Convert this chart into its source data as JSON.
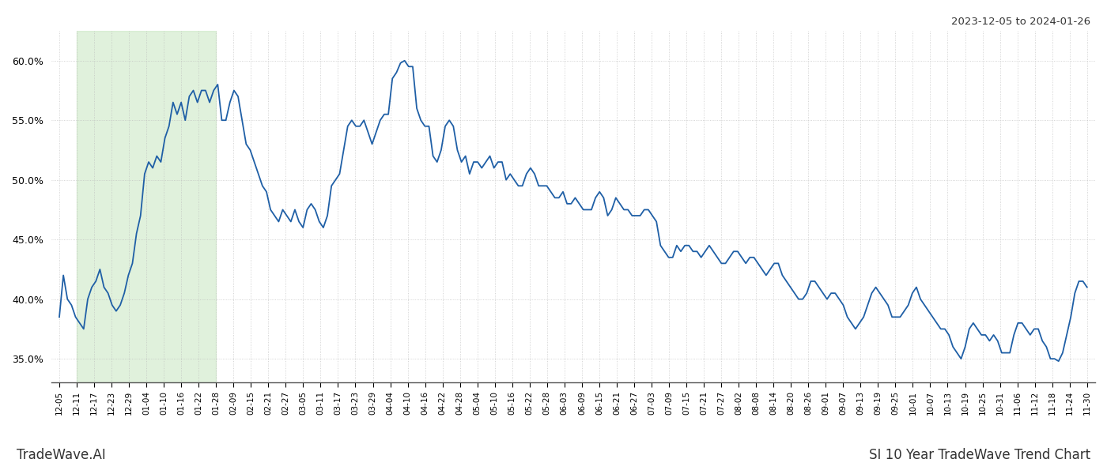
{
  "title_top_right": "2023-12-05 to 2024-01-26",
  "title_bottom_left": "TradeWave.AI",
  "title_bottom_right": "SI 10 Year TradeWave Trend Chart",
  "line_color": "#1f5fa6",
  "line_width": 1.3,
  "background_color": "#ffffff",
  "shaded_region_color": "#c8e6c0",
  "shaded_region_alpha": 0.55,
  "ylim": [
    33.0,
    62.5
  ],
  "yticks": [
    35.0,
    40.0,
    45.0,
    50.0,
    55.0,
    60.0
  ],
  "x_labels": [
    "12-05",
    "12-11",
    "12-17",
    "12-23",
    "12-29",
    "01-04",
    "01-10",
    "01-16",
    "01-22",
    "01-28",
    "02-09",
    "02-15",
    "02-21",
    "02-27",
    "03-05",
    "03-11",
    "03-17",
    "03-23",
    "03-29",
    "04-04",
    "04-10",
    "04-16",
    "04-22",
    "04-28",
    "05-04",
    "05-10",
    "05-16",
    "05-22",
    "05-28",
    "06-03",
    "06-09",
    "06-15",
    "06-21",
    "06-27",
    "07-03",
    "07-09",
    "07-15",
    "07-21",
    "07-27",
    "08-02",
    "08-08",
    "08-14",
    "08-20",
    "08-26",
    "09-01",
    "09-07",
    "09-13",
    "09-19",
    "09-25",
    "10-01",
    "10-07",
    "10-13",
    "10-19",
    "10-25",
    "10-31",
    "11-06",
    "11-12",
    "11-18",
    "11-24",
    "11-30"
  ],
  "shaded_x_start_label": "12-11",
  "shaded_x_end_label": "01-28",
  "values": [
    38.5,
    42.0,
    40.0,
    39.5,
    38.5,
    38.0,
    37.5,
    40.0,
    41.0,
    41.5,
    42.5,
    41.0,
    40.5,
    39.5,
    39.0,
    39.5,
    40.5,
    42.0,
    43.0,
    45.5,
    47.0,
    50.5,
    51.5,
    51.0,
    52.0,
    51.5,
    53.5,
    54.5,
    56.5,
    55.5,
    56.5,
    55.0,
    57.0,
    57.5,
    56.5,
    57.5,
    57.5,
    56.5,
    57.5,
    58.0,
    55.0,
    55.0,
    56.5,
    57.5,
    57.0,
    55.0,
    53.0,
    52.5,
    51.5,
    50.5,
    49.5,
    49.0,
    47.5,
    47.0,
    46.5,
    47.5,
    47.0,
    46.5,
    47.5,
    46.5,
    46.0,
    47.5,
    48.0,
    47.5,
    46.5,
    46.0,
    47.0,
    49.5,
    50.0,
    50.5,
    52.5,
    54.5,
    55.0,
    54.5,
    54.5,
    55.0,
    54.0,
    53.0,
    54.0,
    55.0,
    55.5,
    55.5,
    58.5,
    59.0,
    59.8,
    60.0,
    59.5,
    59.5,
    56.0,
    55.0,
    54.5,
    54.5,
    52.0,
    51.5,
    52.5,
    54.5,
    55.0,
    54.5,
    52.5,
    51.5,
    52.0,
    50.5,
    51.5,
    51.5,
    51.0,
    51.5,
    52.0,
    51.0,
    51.5,
    51.5,
    50.0,
    50.5,
    50.0,
    49.5,
    49.5,
    50.5,
    51.0,
    50.5,
    49.5,
    49.5,
    49.5,
    49.0,
    48.5,
    48.5,
    49.0,
    48.0,
    48.0,
    48.5,
    48.0,
    47.5,
    47.5,
    47.5,
    48.5,
    49.0,
    48.5,
    47.0,
    47.5,
    48.5,
    48.0,
    47.5,
    47.5,
    47.0,
    47.0,
    47.0,
    47.5,
    47.5,
    47.0,
    46.5,
    44.5,
    44.0,
    43.5,
    43.5,
    44.5,
    44.0,
    44.5,
    44.5,
    44.0,
    44.0,
    43.5,
    44.0,
    44.5,
    44.0,
    43.5,
    43.0,
    43.0,
    43.5,
    44.0,
    44.0,
    43.5,
    43.0,
    43.5,
    43.5,
    43.0,
    42.5,
    42.0,
    42.5,
    43.0,
    43.0,
    42.0,
    41.5,
    41.0,
    40.5,
    40.0,
    40.0,
    40.5,
    41.5,
    41.5,
    41.0,
    40.5,
    40.0,
    40.5,
    40.5,
    40.0,
    39.5,
    38.5,
    38.0,
    37.5,
    38.0,
    38.5,
    39.5,
    40.5,
    41.0,
    40.5,
    40.0,
    39.5,
    38.5,
    38.5,
    38.5,
    39.0,
    39.5,
    40.5,
    41.0,
    40.0,
    39.5,
    39.0,
    38.5,
    38.0,
    37.5,
    37.5,
    37.0,
    36.0,
    35.5,
    35.0,
    36.0,
    37.5,
    38.0,
    37.5,
    37.0,
    37.0,
    36.5,
    37.0,
    36.5,
    35.5,
    35.5,
    35.5,
    37.0,
    38.0,
    38.0,
    37.5,
    37.0,
    37.5,
    37.5,
    36.5,
    36.0,
    35.0,
    35.0,
    34.8,
    35.5,
    37.0,
    38.5,
    40.5,
    41.5,
    41.5,
    41.0
  ]
}
